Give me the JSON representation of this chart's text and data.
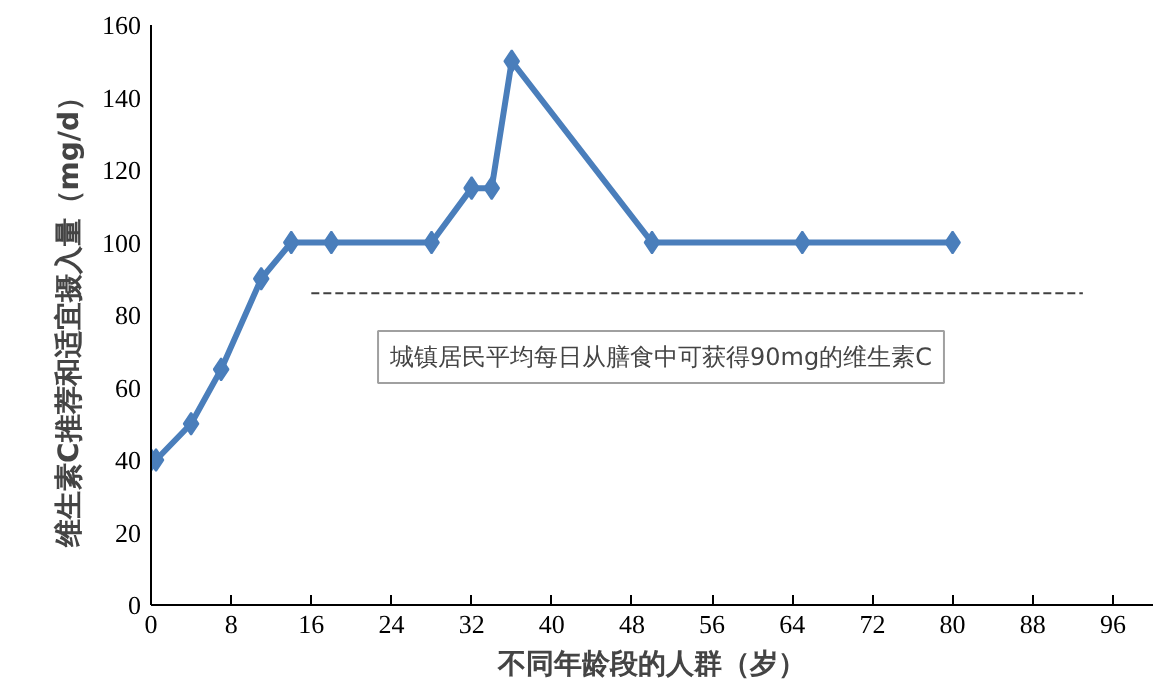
{
  "chart_data": {
    "type": "line",
    "xlabel": "不同年龄段的人群（岁）",
    "ylabel": "维生素C推荐和适宜摄入量（mg/d）",
    "xlim": [
      0,
      100
    ],
    "ylim": [
      0,
      160
    ],
    "xticks": [
      0,
      8,
      16,
      24,
      32,
      40,
      48,
      56,
      64,
      72,
      80,
      88,
      96
    ],
    "yticks": [
      0,
      20,
      40,
      60,
      80,
      100,
      120,
      140,
      160
    ],
    "grid": false,
    "marker": "diamond",
    "line_style": "solid",
    "series": [
      {
        "color": "#4a7ebb",
        "x": [
          0,
          0.5,
          4,
          7,
          11,
          14,
          18,
          28,
          32,
          34,
          36,
          50,
          65,
          80
        ],
        "values": [
          40,
          40,
          50,
          65,
          90,
          100,
          100,
          100,
          115,
          115,
          150,
          100,
          100,
          100
        ]
      },
      {
        "type": "line",
        "color": "#404040",
        "line_style": "dashed",
        "marker": "none",
        "x": [
          16,
          93
        ],
        "values": [
          86,
          86
        ]
      }
    ],
    "annotations": [
      "城镇居民平均每日从膳食中可获得90mg的维生素C"
    ]
  }
}
